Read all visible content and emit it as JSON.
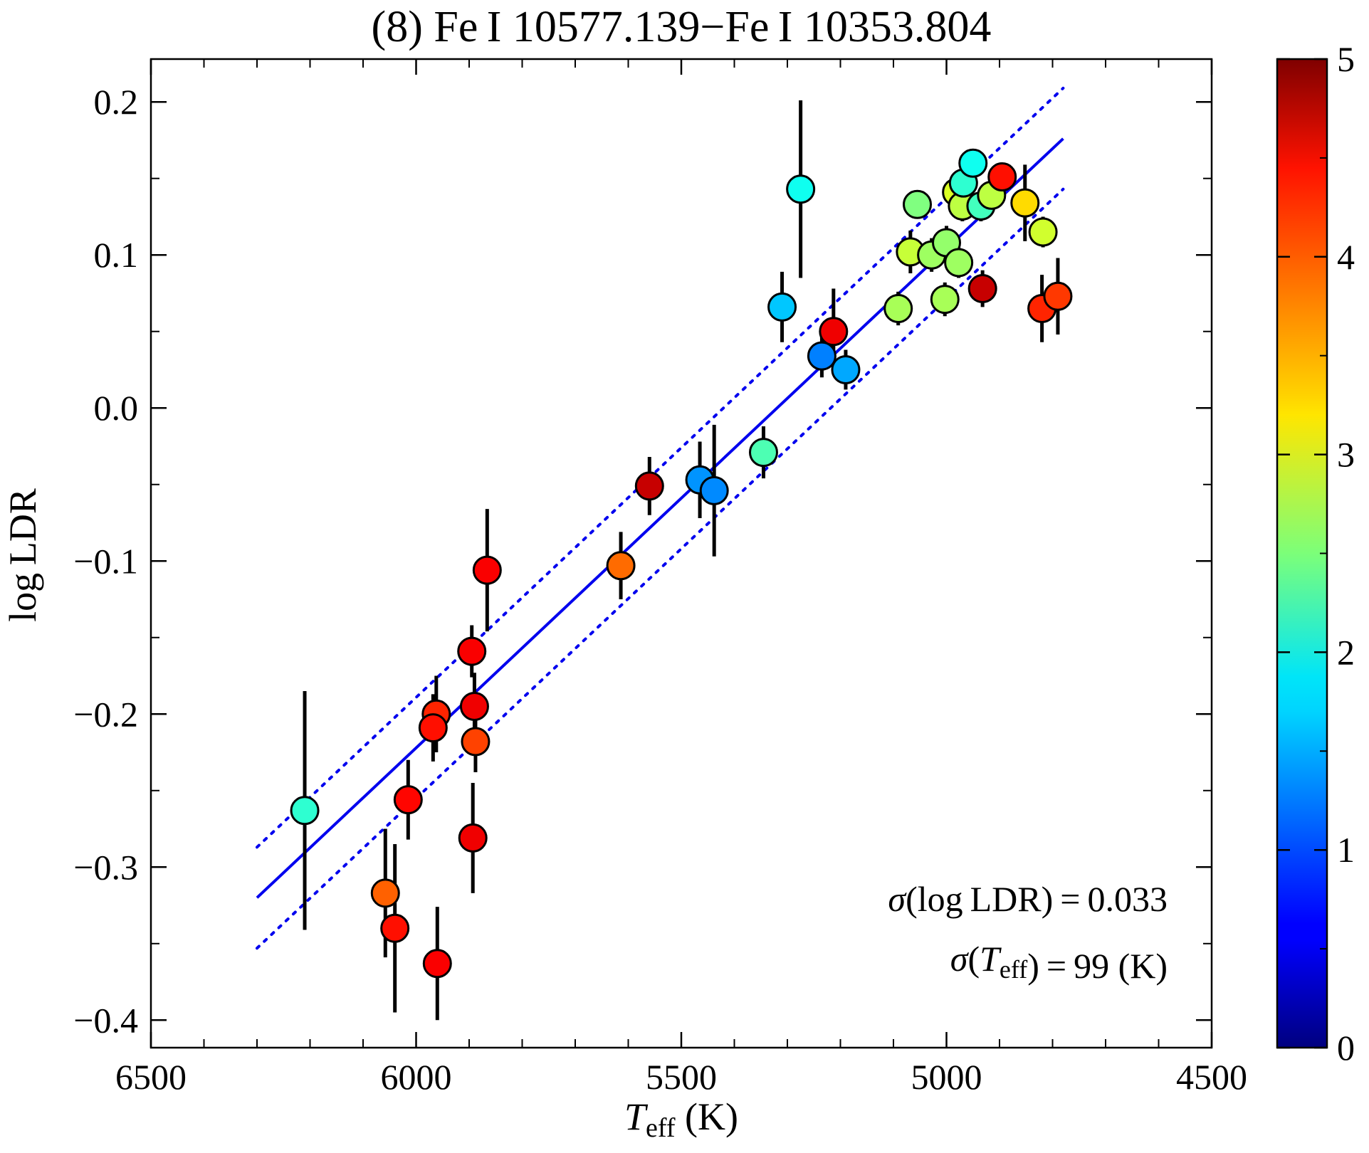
{
  "chart_data": {
    "type": "scatter",
    "title": "(8) Fe I 10577.139−Fe I 10353.804",
    "xlabel": {
      "main": "T",
      "sub": "eff",
      "units": " (K)"
    },
    "ylabel": "log LDR",
    "xlim": [
      6500,
      4500
    ],
    "ylim": [
      -0.418,
      0.228
    ],
    "x_ticks": [
      6500,
      6000,
      5500,
      5000,
      4500
    ],
    "x_tick_labels": [
      "6500",
      "6000",
      "5500",
      "5000",
      "4500"
    ],
    "y_ticks": [
      -0.4,
      -0.3,
      -0.2,
      -0.1,
      0.0,
      0.1,
      0.2
    ],
    "y_tick_labels": [
      "−0.4",
      "−0.3",
      "−0.2",
      "−0.1",
      "0.0",
      "0.1",
      "0.2"
    ],
    "colorbar": {
      "min": 0,
      "max": 5,
      "ticks": [
        0,
        1,
        2,
        3,
        4,
        5
      ],
      "tick_labels": [
        "0",
        "1",
        "2",
        "3",
        "4",
        "5"
      ],
      "colormap": "jet"
    },
    "fit_line": {
      "x": [
        6300,
        4780
      ],
      "y": [
        -0.32,
        0.176
      ],
      "color": "#0000ee",
      "style": "solid"
    },
    "bound_upper": {
      "x": [
        6300,
        4780
      ],
      "y": [
        -0.287,
        0.209
      ],
      "color": "#0000ee",
      "style": "dotted"
    },
    "bound_lower": {
      "x": [
        6300,
        4780
      ],
      "y": [
        -0.353,
        0.143
      ],
      "color": "#0000ee",
      "style": "dotted"
    },
    "annotations": [
      {
        "parts": [
          {
            "t": "σ",
            "italic": true
          },
          {
            "t": "(log LDR) = 0.033"
          }
        ]
      },
      {
        "parts": [
          {
            "t": "σ",
            "italic": true
          },
          {
            "t": "("
          },
          {
            "t": "T",
            "italic": true
          },
          {
            "t": "eff",
            "sub": true
          },
          {
            "t": ") = 99 (K)"
          }
        ]
      }
    ],
    "points": [
      {
        "x": 6210,
        "y": -0.263,
        "err": 0.078,
        "c": 2.1
      },
      {
        "x": 6058,
        "y": -0.317,
        "err": 0.042,
        "c": 3.9
      },
      {
        "x": 6040,
        "y": -0.34,
        "err": 0.055,
        "c": 4.3
      },
      {
        "x": 6015,
        "y": -0.256,
        "err": 0.026,
        "c": 4.35
      },
      {
        "x": 5962,
        "y": -0.2,
        "err": 0.025,
        "c": 4.2
      },
      {
        "x": 5968,
        "y": -0.209,
        "err": 0.022,
        "c": 4.3
      },
      {
        "x": 5960,
        "y": -0.363,
        "err": 0.037,
        "c": 4.4
      },
      {
        "x": 5895,
        "y": -0.159,
        "err": 0.017,
        "c": 4.4
      },
      {
        "x": 5890,
        "y": -0.195,
        "err": 0.022,
        "c": 4.45
      },
      {
        "x": 5888,
        "y": -0.218,
        "err": 0.02,
        "c": 4.05
      },
      {
        "x": 5893,
        "y": -0.281,
        "err": 0.036,
        "c": 4.45
      },
      {
        "x": 5866,
        "y": -0.106,
        "err": 0.04,
        "c": 4.4
      },
      {
        "x": 5614,
        "y": -0.103,
        "err": 0.022,
        "c": 3.85
      },
      {
        "x": 5560,
        "y": -0.051,
        "err": 0.019,
        "c": 4.65
      },
      {
        "x": 5465,
        "y": -0.047,
        "err": 0.025,
        "c": 1.35
      },
      {
        "x": 5438,
        "y": -0.054,
        "err": 0.043,
        "c": 1.3
      },
      {
        "x": 5345,
        "y": -0.029,
        "err": 0.017,
        "c": 2.25
      },
      {
        "x": 5310,
        "y": 0.066,
        "err": 0.023,
        "c": 1.6
      },
      {
        "x": 5275,
        "y": 0.143,
        "err": 0.058,
        "c": 1.95
      },
      {
        "x": 5235,
        "y": 0.034,
        "err": 0.014,
        "c": 1.25
      },
      {
        "x": 5213,
        "y": 0.05,
        "err": 0.028,
        "c": 4.45
      },
      {
        "x": 5190,
        "y": 0.025,
        "err": 0.013,
        "c": 1.45
      },
      {
        "x": 5091,
        "y": 0.065,
        "err": 0.011,
        "c": 2.7
      },
      {
        "x": 5068,
        "y": 0.102,
        "err": 0.014,
        "c": 2.85
      },
      {
        "x": 5055,
        "y": 0.133,
        "err": 0.009,
        "c": 2.5
      },
      {
        "x": 5028,
        "y": 0.1,
        "err": 0.011,
        "c": 2.65
      },
      {
        "x": 5003,
        "y": 0.071,
        "err": 0.011,
        "c": 2.7
      },
      {
        "x": 5000,
        "y": 0.108,
        "err": 0.011,
        "c": 2.6
      },
      {
        "x": 4981,
        "y": 0.141,
        "err": 0.01,
        "c": 2.95
      },
      {
        "x": 4977,
        "y": 0.095,
        "err": 0.01,
        "c": 2.65
      },
      {
        "x": 4970,
        "y": 0.132,
        "err": 0.01,
        "c": 2.8
      },
      {
        "x": 4968,
        "y": 0.147,
        "err": 0.01,
        "c": 2.1
      },
      {
        "x": 4950,
        "y": 0.16,
        "err": 0.008,
        "c": 1.95
      },
      {
        "x": 4935,
        "y": 0.132,
        "err": 0.01,
        "c": 2.2
      },
      {
        "x": 4932,
        "y": 0.078,
        "err": 0.012,
        "c": 4.65
      },
      {
        "x": 4915,
        "y": 0.139,
        "err": 0.01,
        "c": 2.8
      },
      {
        "x": 4895,
        "y": 0.151,
        "err": 0.009,
        "c": 4.3
      },
      {
        "x": 4852,
        "y": 0.134,
        "err": 0.025,
        "c": 3.3
      },
      {
        "x": 4818,
        "y": 0.115,
        "err": 0.01,
        "c": 2.9
      },
      {
        "x": 4820,
        "y": 0.065,
        "err": 0.022,
        "c": 4.2
      },
      {
        "x": 4790,
        "y": 0.073,
        "err": 0.025,
        "c": 4.1
      }
    ]
  }
}
